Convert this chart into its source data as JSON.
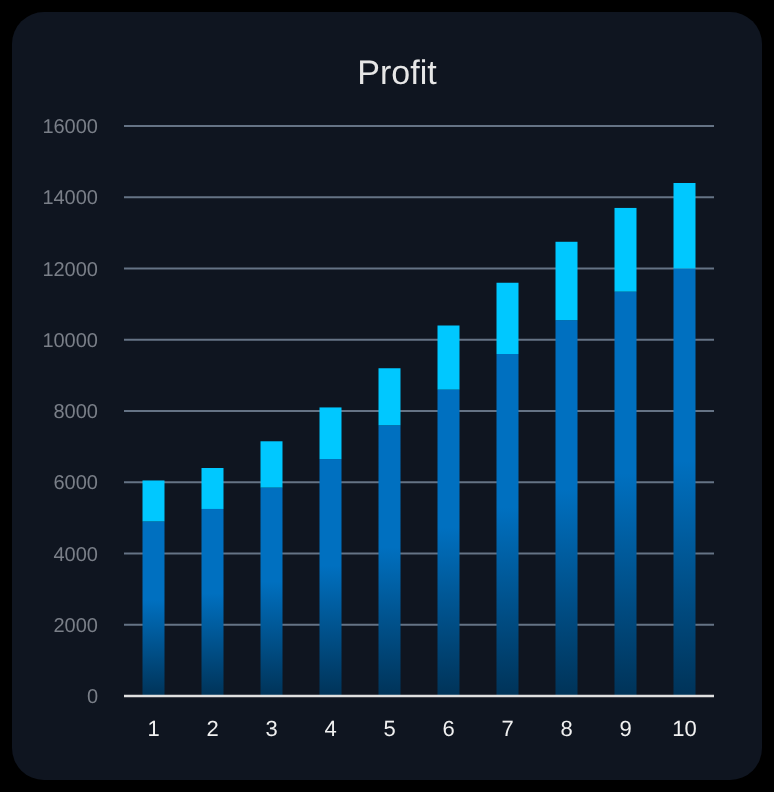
{
  "chart_data": {
    "type": "bar",
    "title": "Profit",
    "categories": [
      "1",
      "2",
      "3",
      "4",
      "5",
      "6",
      "7",
      "8",
      "9",
      "10"
    ],
    "stacked": true,
    "series": [
      {
        "color": "#0070c0",
        "values": [
          4900,
          5250,
          5850,
          6650,
          7600,
          8600,
          9600,
          10550,
          11350,
          12000
        ]
      },
      {
        "color": "#00c8ff",
        "values": [
          1150,
          1150,
          1300,
          1450,
          1600,
          1800,
          2000,
          2200,
          2350,
          2400
        ]
      }
    ],
    "ylim": [
      0,
      16000
    ],
    "yticks": [
      0,
      2000,
      4000,
      6000,
      8000,
      10000,
      12000,
      14000,
      16000
    ],
    "grid": "y"
  }
}
